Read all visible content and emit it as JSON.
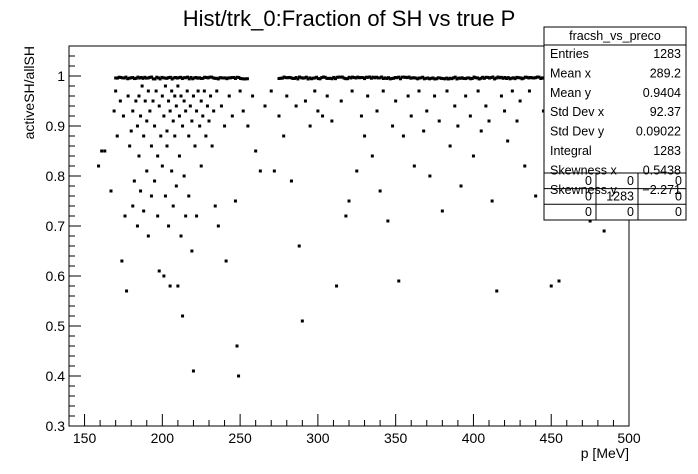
{
  "chart_data": {
    "type": "scatter",
    "title": "Hist/trk_0:Fraction of SH vs true P",
    "xlabel": "p [MeV]",
    "ylabel": "activeSH/allSH",
    "xlim": [
      140,
      500
    ],
    "ylim": [
      0.3,
      1.06
    ],
    "x_ticks": [
      150,
      200,
      250,
      300,
      350,
      400,
      450,
      500
    ],
    "y_ticks": [
      0.3,
      0.4,
      0.5,
      0.6,
      0.7,
      0.8,
      0.9,
      1
    ],
    "grid": false,
    "legend": "none",
    "stats_box": {
      "name": "fracsh_vs_preco",
      "placement": "top-right",
      "rows": [
        {
          "label": "Entries",
          "value": "1283"
        },
        {
          "label": "Mean x",
          "value": "289.2"
        },
        {
          "label": "Mean y",
          "value": "0.9404"
        },
        {
          "label": "Std Dev x",
          "value": "92.37"
        },
        {
          "label": "Std Dev y",
          "value": "0.09022"
        },
        {
          "label": "Integral",
          "value": "1283"
        },
        {
          "label": "Skewness x",
          "value": "0.5438"
        },
        {
          "label": "Skewness y",
          "value": "−2.271"
        }
      ],
      "overflow_grid": [
        [
          "0",
          "0",
          "0"
        ],
        [
          "0",
          "1283",
          "0"
        ],
        [
          "0",
          "0",
          "0"
        ]
      ]
    },
    "points": [
      [
        159,
        0.82
      ],
      [
        161,
        0.85
      ],
      [
        163,
        0.85
      ],
      [
        167,
        0.77
      ],
      [
        169,
        0.93
      ],
      [
        170,
        0.97
      ],
      [
        171,
        0.88
      ],
      [
        173,
        0.95
      ],
      [
        174,
        0.63
      ],
      [
        175,
        0.92
      ],
      [
        176,
        0.72
      ],
      [
        177,
        0.57
      ],
      [
        178,
        0.96
      ],
      [
        179,
        0.86
      ],
      [
        180,
        0.89
      ],
      [
        181,
        0.93
      ],
      [
        181,
        0.74
      ],
      [
        182,
        0.79
      ],
      [
        183,
        0.95
      ],
      [
        184,
        0.9
      ],
      [
        184,
        0.7
      ],
      [
        185,
        0.96
      ],
      [
        185,
        0.84
      ],
      [
        186,
        0.92
      ],
      [
        186,
        0.77
      ],
      [
        187,
        0.98
      ],
      [
        188,
        0.88
      ],
      [
        188,
        0.73
      ],
      [
        189,
        0.95
      ],
      [
        190,
        0.91
      ],
      [
        190,
        0.81
      ],
      [
        191,
        0.97
      ],
      [
        191,
        0.68
      ],
      [
        192,
        0.93
      ],
      [
        193,
        0.86
      ],
      [
        193,
        0.76
      ],
      [
        194,
        0.95
      ],
      [
        195,
        0.9
      ],
      [
        195,
        0.79
      ],
      [
        196,
        0.97
      ],
      [
        197,
        0.84
      ],
      [
        197,
        0.72
      ],
      [
        198,
        0.94
      ],
      [
        198,
        0.61
      ],
      [
        199,
        0.88
      ],
      [
        200,
        0.96
      ],
      [
        200,
        0.82
      ],
      [
        201,
        0.92
      ],
      [
        201,
        0.6
      ],
      [
        202,
        0.98
      ],
      [
        202,
        0.76
      ],
      [
        203,
        0.89
      ],
      [
        203,
        0.86
      ],
      [
        204,
        0.95
      ],
      [
        204,
        0.7
      ],
      [
        205,
        0.93
      ],
      [
        205,
        0.58
      ],
      [
        206,
        0.97
      ],
      [
        206,
        0.81
      ],
      [
        207,
        0.91
      ],
      [
        207,
        0.74
      ],
      [
        208,
        0.96
      ],
      [
        208,
        0.88
      ],
      [
        209,
        0.94
      ],
      [
        209,
        0.78
      ],
      [
        210,
        0.98
      ],
      [
        210,
        0.58
      ],
      [
        211,
        0.92
      ],
      [
        211,
        0.84
      ],
      [
        212,
        0.96
      ],
      [
        212,
        0.68
      ],
      [
        213,
        0.9
      ],
      [
        213,
        0.52
      ],
      [
        214,
        0.95
      ],
      [
        214,
        0.8
      ],
      [
        215,
        0.93
      ],
      [
        215,
        0.72
      ],
      [
        216,
        0.97
      ],
      [
        217,
        0.88
      ],
      [
        217,
        0.76
      ],
      [
        218,
        0.94
      ],
      [
        219,
        0.91
      ],
      [
        219,
        0.65
      ],
      [
        220,
        0.96
      ],
      [
        220,
        0.41
      ],
      [
        221,
        0.86
      ],
      [
        222,
        0.93
      ],
      [
        222,
        0.72
      ],
      [
        223,
        0.97
      ],
      [
        224,
        0.9
      ],
      [
        225,
        0.95
      ],
      [
        225,
        0.82
      ],
      [
        226,
        0.92
      ],
      [
        227,
        0.97
      ],
      [
        228,
        0.88
      ],
      [
        229,
        0.94
      ],
      [
        230,
        0.91
      ],
      [
        231,
        0.96
      ],
      [
        232,
        0.86
      ],
      [
        233,
        0.93
      ],
      [
        234,
        0.74
      ],
      [
        235,
        0.97
      ],
      [
        236,
        0.7
      ],
      [
        238,
        0.94
      ],
      [
        240,
        0.9
      ],
      [
        241,
        0.63
      ],
      [
        243,
        0.96
      ],
      [
        245,
        0.92
      ],
      [
        247,
        0.75
      ],
      [
        248,
        0.46
      ],
      [
        249,
        0.4
      ],
      [
        250,
        0.97
      ],
      [
        252,
        0.93
      ],
      [
        255,
        0.9
      ],
      [
        258,
        0.96
      ],
      [
        260,
        0.85
      ],
      [
        263,
        0.81
      ],
      [
        266,
        0.94
      ],
      [
        270,
        0.97
      ],
      [
        272,
        0.81
      ],
      [
        275,
        0.92
      ],
      [
        278,
        0.88
      ],
      [
        280,
        0.96
      ],
      [
        283,
        0.79
      ],
      [
        286,
        0.94
      ],
      [
        288,
        0.66
      ],
      [
        290,
        0.51
      ],
      [
        292,
        0.95
      ],
      [
        295,
        0.9
      ],
      [
        298,
        0.97
      ],
      [
        300,
        0.93
      ],
      [
        303,
        0.92
      ],
      [
        306,
        0.96
      ],
      [
        309,
        0.91
      ],
      [
        312,
        0.58
      ],
      [
        315,
        0.95
      ],
      [
        318,
        0.72
      ],
      [
        320,
        0.75
      ],
      [
        322,
        0.97
      ],
      [
        325,
        0.81
      ],
      [
        328,
        0.92
      ],
      [
        330,
        0.88
      ],
      [
        332,
        0.96
      ],
      [
        335,
        0.84
      ],
      [
        338,
        0.93
      ],
      [
        340,
        0.77
      ],
      [
        342,
        0.97
      ],
      [
        345,
        0.71
      ],
      [
        348,
        0.9
      ],
      [
        350,
        0.95
      ],
      [
        352,
        0.59
      ],
      [
        355,
        0.88
      ],
      [
        358,
        0.96
      ],
      [
        360,
        0.92
      ],
      [
        362,
        0.82
      ],
      [
        365,
        0.97
      ],
      [
        368,
        0.89
      ],
      [
        370,
        0.93
      ],
      [
        372,
        0.8
      ],
      [
        375,
        0.96
      ],
      [
        378,
        0.91
      ],
      [
        380,
        0.73
      ],
      [
        383,
        0.97
      ],
      [
        385,
        0.86
      ],
      [
        388,
        0.94
      ],
      [
        390,
        0.9
      ],
      [
        392,
        0.78
      ],
      [
        395,
        0.96
      ],
      [
        398,
        0.92
      ],
      [
        400,
        0.84
      ],
      [
        403,
        0.97
      ],
      [
        405,
        0.89
      ],
      [
        408,
        0.94
      ],
      [
        410,
        0.91
      ],
      [
        412,
        0.75
      ],
      [
        415,
        0.57
      ],
      [
        418,
        0.96
      ],
      [
        420,
        0.93
      ],
      [
        422,
        0.87
      ],
      [
        425,
        0.97
      ],
      [
        428,
        0.91
      ],
      [
        430,
        0.95
      ],
      [
        433,
        0.82
      ],
      [
        436,
        0.97
      ],
      [
        440,
        0.76
      ],
      [
        445,
        0.93
      ],
      [
        450,
        0.58
      ],
      [
        455,
        0.59
      ],
      [
        460,
        0.92
      ],
      [
        465,
        0.89
      ],
      [
        470,
        0.84
      ],
      [
        475,
        0.71
      ],
      [
        480,
        0.8
      ],
      [
        484,
        0.69
      ],
      [
        488,
        0.78
      ],
      [
        492,
        0.87
      ]
    ],
    "top_band": {
      "y": 0.998,
      "x_ranges": [
        [
          170,
          255
        ],
        [
          275,
          500
        ]
      ],
      "note": "dense row of points at activeSH/allSH ~ 1"
    }
  }
}
